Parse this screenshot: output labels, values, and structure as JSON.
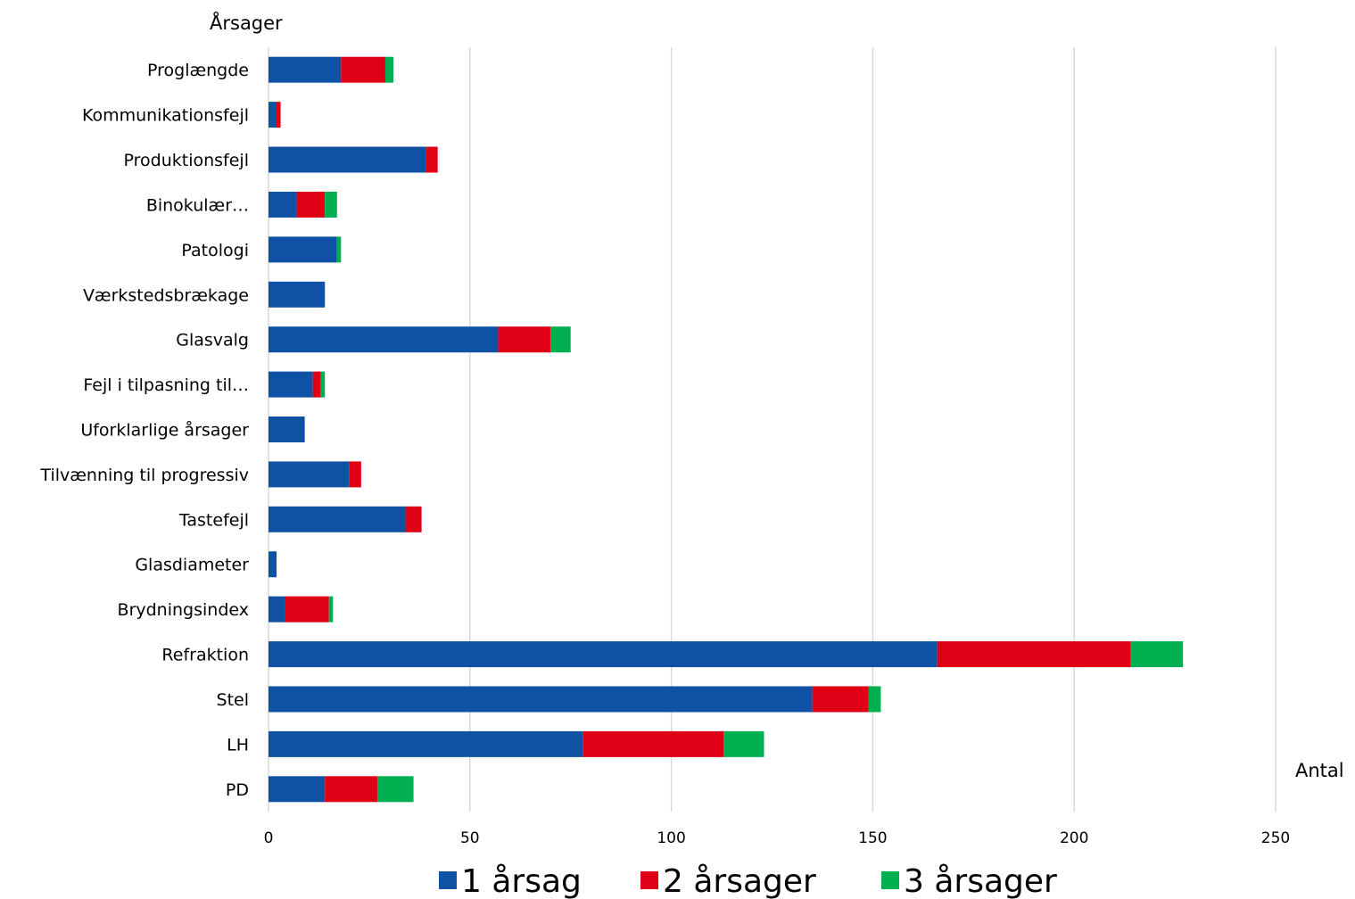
{
  "chart_data": {
    "type": "bar",
    "orientation": "horizontal",
    "stacked": true,
    "ylabel": "Årsager",
    "xlabel": "Antal",
    "xlim": [
      0,
      250
    ],
    "xticks": [
      "0",
      "50",
      "100",
      "150",
      "200",
      "250"
    ],
    "grid": true,
    "legend_position": "bottom",
    "categories": [
      "Proglængde",
      "Kommunikationsfejl",
      "Produktionsfejl",
      "Binokulær…",
      "Patologi",
      "Værkstedsbrækage",
      "Glasvalg",
      "Fejl i tilpasning til…",
      "Uforklarlige årsager",
      "Tilvænning til progressiv",
      "Tastefejl",
      "Glasdiameter",
      "Brydningsindex",
      "Refraktion",
      "Stel",
      "LH",
      "PD"
    ],
    "series": [
      {
        "name": "1 årsag",
        "color": "#0f52a5",
        "values": [
          18,
          2,
          39,
          7,
          17,
          14,
          57,
          11,
          9,
          20,
          34,
          2,
          4,
          166,
          135,
          78,
          14
        ]
      },
      {
        "name": "2 årsager",
        "color": "#e00016",
        "values": [
          11,
          1,
          3,
          7,
          0,
          0,
          13,
          2,
          0,
          3,
          4,
          0,
          11,
          48,
          14,
          35,
          13
        ]
      },
      {
        "name": "3 årsager",
        "color": "#00b050",
        "values": [
          2,
          0,
          0,
          3,
          1,
          0,
          5,
          1,
          0,
          0,
          0,
          0,
          1,
          13,
          3,
          10,
          9
        ]
      }
    ]
  }
}
